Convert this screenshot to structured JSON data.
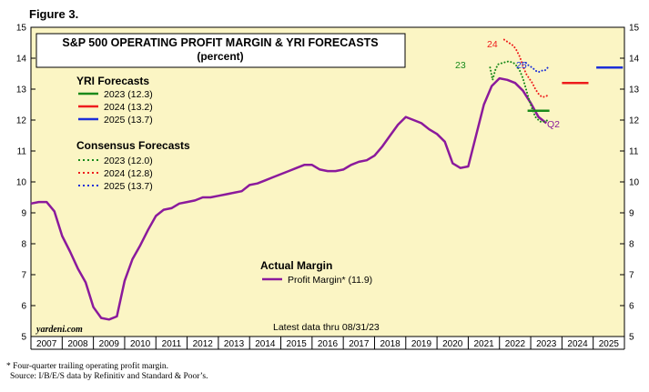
{
  "figure_label": "Figure 3.",
  "footnote": {
    "line1": "*  Four-quarter trailing operating profit margin.",
    "line2": "Source: I/B/E/S data by Refinitiv and Standard & Poor’s."
  },
  "colors": {
    "plot_bg": "#fbf5c4",
    "actual": "#8b1a9c",
    "green": "#1a8a1a",
    "red": "#ee1c1c",
    "blue": "#1c2fd8"
  },
  "chart_data": {
    "type": "line",
    "title": "S&P 500 OPERATING PROFIT MARGIN & YRI FORECASTS",
    "subtitle": "(percent)",
    "xlabel": "",
    "ylabel": "",
    "x_range": [
      2007.0,
      2026.0
    ],
    "ylim": [
      5,
      15
    ],
    "y_ticks": [
      "5",
      "6",
      "7",
      "8",
      "9",
      "10",
      "11",
      "12",
      "13",
      "14",
      "15"
    ],
    "year_labels": [
      "2007",
      "2008",
      "2009",
      "2010",
      "2011",
      "2012",
      "2013",
      "2014",
      "2015",
      "2016",
      "2017",
      "2018",
      "2019",
      "2020",
      "2021",
      "2022",
      "2023",
      "2024",
      "2025"
    ],
    "grid": false,
    "legend_yri": {
      "heading": "YRI Forecasts",
      "items": [
        {
          "label": "2023 (12.3)",
          "color": "#1a8a1a"
        },
        {
          "label": "2024 (13.2)",
          "color": "#ee1c1c"
        },
        {
          "label": "2025 (13.7)",
          "color": "#1c2fd8"
        }
      ]
    },
    "legend_consensus": {
      "heading": "Consensus Forecasts",
      "items": [
        {
          "label": "2023 (12.0)",
          "color": "#1a8a1a"
        },
        {
          "label": "2024 (12.8)",
          "color": "#ee1c1c"
        },
        {
          "label": "2025 (13.7)",
          "color": "#1c2fd8"
        }
      ]
    },
    "legend_actual": {
      "heading": "Actual Margin",
      "item": "Profit Margin* (11.9)"
    },
    "annotations": {
      "latest": "Latest data thru 08/31/23",
      "watermark": "yardeni.com",
      "q2": "Q2",
      "label_23": "23",
      "label_24": "24",
      "label_25": "25"
    },
    "series": [
      {
        "name": "Profit Margin* (11.9)",
        "style": "solid",
        "color": "#8b1a9c",
        "points": [
          [
            2007.0,
            9.3
          ],
          [
            2007.25,
            9.35
          ],
          [
            2007.5,
            9.35
          ],
          [
            2007.75,
            9.05
          ],
          [
            2008.0,
            8.25
          ],
          [
            2008.25,
            7.75
          ],
          [
            2008.5,
            7.2
          ],
          [
            2008.75,
            6.75
          ],
          [
            2009.0,
            5.95
          ],
          [
            2009.25,
            5.6
          ],
          [
            2009.5,
            5.55
          ],
          [
            2009.75,
            5.65
          ],
          [
            2010.0,
            6.8
          ],
          [
            2010.25,
            7.5
          ],
          [
            2010.5,
            7.95
          ],
          [
            2010.75,
            8.45
          ],
          [
            2011.0,
            8.9
          ],
          [
            2011.25,
            9.1
          ],
          [
            2011.5,
            9.15
          ],
          [
            2011.75,
            9.3
          ],
          [
            2012.0,
            9.35
          ],
          [
            2012.25,
            9.4
          ],
          [
            2012.5,
            9.5
          ],
          [
            2012.75,
            9.5
          ],
          [
            2013.0,
            9.55
          ],
          [
            2013.25,
            9.6
          ],
          [
            2013.5,
            9.65
          ],
          [
            2013.75,
            9.7
          ],
          [
            2014.0,
            9.9
          ],
          [
            2014.25,
            9.95
          ],
          [
            2014.5,
            10.05
          ],
          [
            2014.75,
            10.15
          ],
          [
            2015.0,
            10.25
          ],
          [
            2015.25,
            10.35
          ],
          [
            2015.5,
            10.45
          ],
          [
            2015.75,
            10.55
          ],
          [
            2016.0,
            10.55
          ],
          [
            2016.25,
            10.4
          ],
          [
            2016.5,
            10.35
          ],
          [
            2016.75,
            10.35
          ],
          [
            2017.0,
            10.4
          ],
          [
            2017.25,
            10.55
          ],
          [
            2017.5,
            10.65
          ],
          [
            2017.75,
            10.7
          ],
          [
            2018.0,
            10.85
          ],
          [
            2018.25,
            11.15
          ],
          [
            2018.5,
            11.5
          ],
          [
            2018.75,
            11.85
          ],
          [
            2019.0,
            12.1
          ],
          [
            2019.25,
            12.0
          ],
          [
            2019.5,
            11.9
          ],
          [
            2019.75,
            11.7
          ],
          [
            2020.0,
            11.55
          ],
          [
            2020.25,
            11.3
          ],
          [
            2020.5,
            10.6
          ],
          [
            2020.75,
            10.45
          ],
          [
            2021.0,
            10.5
          ],
          [
            2021.25,
            11.5
          ],
          [
            2021.5,
            12.5
          ],
          [
            2021.75,
            13.1
          ],
          [
            2022.0,
            13.35
          ],
          [
            2022.25,
            13.3
          ],
          [
            2022.5,
            13.2
          ],
          [
            2022.75,
            12.95
          ],
          [
            2023.0,
            12.55
          ],
          [
            2023.25,
            12.1
          ],
          [
            2023.5,
            11.9
          ]
        ]
      },
      {
        "name": "YRI 2023 (12.3)",
        "style": "solid",
        "color": "#1a8a1a",
        "points": [
          [
            2022.9,
            12.3
          ],
          [
            2023.6,
            12.3
          ]
        ]
      },
      {
        "name": "YRI 2024 (13.2)",
        "style": "solid",
        "color": "#ee1c1c",
        "points": [
          [
            2024.0,
            13.2
          ],
          [
            2024.85,
            13.2
          ]
        ]
      },
      {
        "name": "YRI 2025 (13.7)",
        "style": "solid",
        "color": "#1c2fd8",
        "points": [
          [
            2025.1,
            13.7
          ],
          [
            2025.95,
            13.7
          ]
        ]
      },
      {
        "name": "Consensus 2023 (12.0)",
        "style": "dotted",
        "color": "#1a8a1a",
        "points": [
          [
            2021.7,
            13.7
          ],
          [
            2021.78,
            13.3
          ],
          [
            2021.86,
            13.6
          ],
          [
            2021.95,
            13.8
          ],
          [
            2022.1,
            13.85
          ],
          [
            2022.3,
            13.9
          ],
          [
            2022.45,
            13.85
          ],
          [
            2022.55,
            13.75
          ],
          [
            2022.65,
            13.6
          ],
          [
            2022.75,
            13.35
          ],
          [
            2022.85,
            13.0
          ],
          [
            2022.95,
            12.65
          ],
          [
            2023.05,
            12.35
          ],
          [
            2023.15,
            12.1
          ],
          [
            2023.3,
            11.95
          ],
          [
            2023.45,
            11.95
          ],
          [
            2023.55,
            12.0
          ]
        ]
      },
      {
        "name": "Consensus 2024 (12.8)",
        "style": "dotted",
        "color": "#ee1c1c",
        "points": [
          [
            2022.15,
            14.6
          ],
          [
            2022.3,
            14.5
          ],
          [
            2022.45,
            14.4
          ],
          [
            2022.55,
            14.25
          ],
          [
            2022.65,
            14.05
          ],
          [
            2022.75,
            13.75
          ],
          [
            2022.85,
            13.5
          ],
          [
            2022.95,
            13.35
          ],
          [
            2023.05,
            13.2
          ],
          [
            2023.15,
            13.0
          ],
          [
            2023.25,
            12.85
          ],
          [
            2023.35,
            12.75
          ],
          [
            2023.45,
            12.75
          ],
          [
            2023.55,
            12.8
          ]
        ]
      },
      {
        "name": "Consensus 2025 (13.7)",
        "style": "dotted",
        "color": "#1c2fd8",
        "points": [
          [
            2022.85,
            13.85
          ],
          [
            2022.95,
            13.75
          ],
          [
            2023.05,
            13.7
          ],
          [
            2023.15,
            13.6
          ],
          [
            2023.25,
            13.55
          ],
          [
            2023.35,
            13.6
          ],
          [
            2023.45,
            13.6
          ],
          [
            2023.55,
            13.7
          ]
        ]
      }
    ]
  }
}
